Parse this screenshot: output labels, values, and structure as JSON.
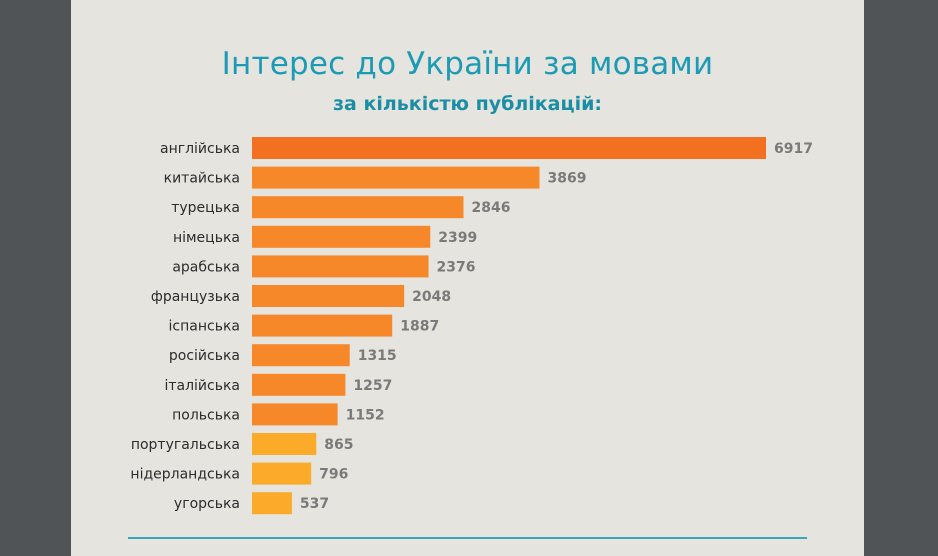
{
  "chart_data": {
    "type": "bar",
    "orientation": "horizontal",
    "title": "Інтерес до України за мовами",
    "subtitle": "за кількістю публікацій:",
    "categories": [
      "англійська",
      "китайська",
      "турецька",
      "німецька",
      "арабська",
      "французька",
      "іспанська",
      "російська",
      "італійська",
      "польська",
      "португальська",
      "нідерландська",
      "угорська"
    ],
    "values": [
      6917,
      3869,
      2846,
      2399,
      2376,
      2048,
      1887,
      1315,
      1257,
      1152,
      865,
      796,
      537
    ],
    "bar_colors": [
      "#f37021",
      "#f6882a",
      "#f6882a",
      "#f6882a",
      "#f6882a",
      "#f6882a",
      "#f6882a",
      "#f6882a",
      "#f6882a",
      "#f6882a",
      "#fbaa2a",
      "#fbaa2a",
      "#fbaa2a"
    ],
    "xlim": [
      0,
      6917
    ],
    "grid": false,
    "legend": "none"
  },
  "colors": {
    "background": "#505456",
    "panel": "#e5e4df",
    "title": "#1e9bb4",
    "divider": "#37a6b8"
  }
}
